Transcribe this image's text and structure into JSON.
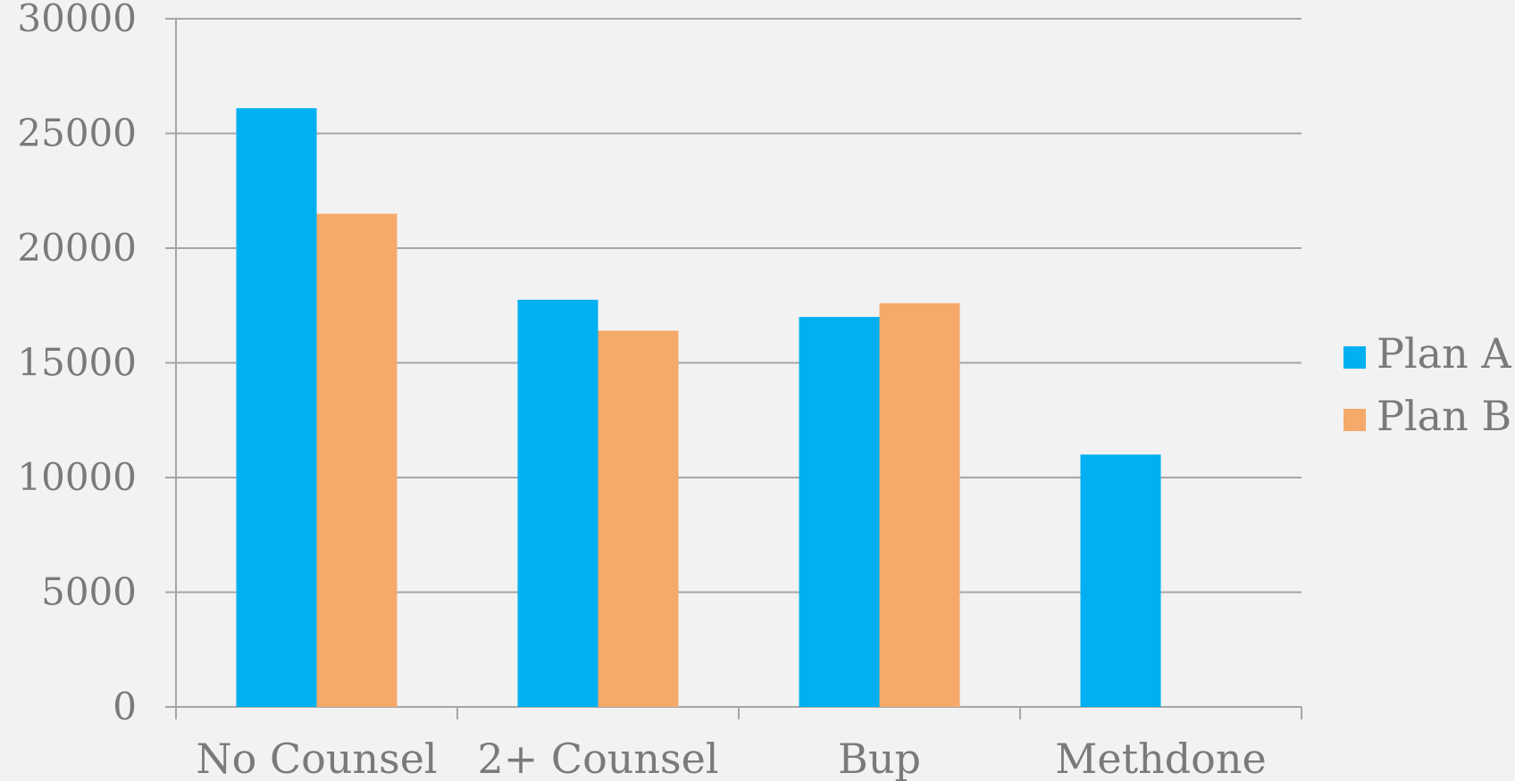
{
  "chart_data": {
    "type": "bar",
    "title": "",
    "xlabel": "",
    "ylabel": "",
    "categories": [
      "No Counsel",
      "2+ Counsel",
      "Bup",
      "Methdone"
    ],
    "series": [
      {
        "name": "Plan A",
        "color": "#00b0f0",
        "values": [
          26100,
          17750,
          17000,
          11000
        ]
      },
      {
        "name": "Plan B",
        "color": "#f5a96a",
        "values": [
          21500,
          16400,
          17600,
          null
        ]
      }
    ],
    "ylim": [
      0,
      30000
    ],
    "yticks": [
      0,
      5000,
      10000,
      15000,
      20000,
      25000,
      30000
    ],
    "grid": true,
    "legend_position": "right"
  }
}
